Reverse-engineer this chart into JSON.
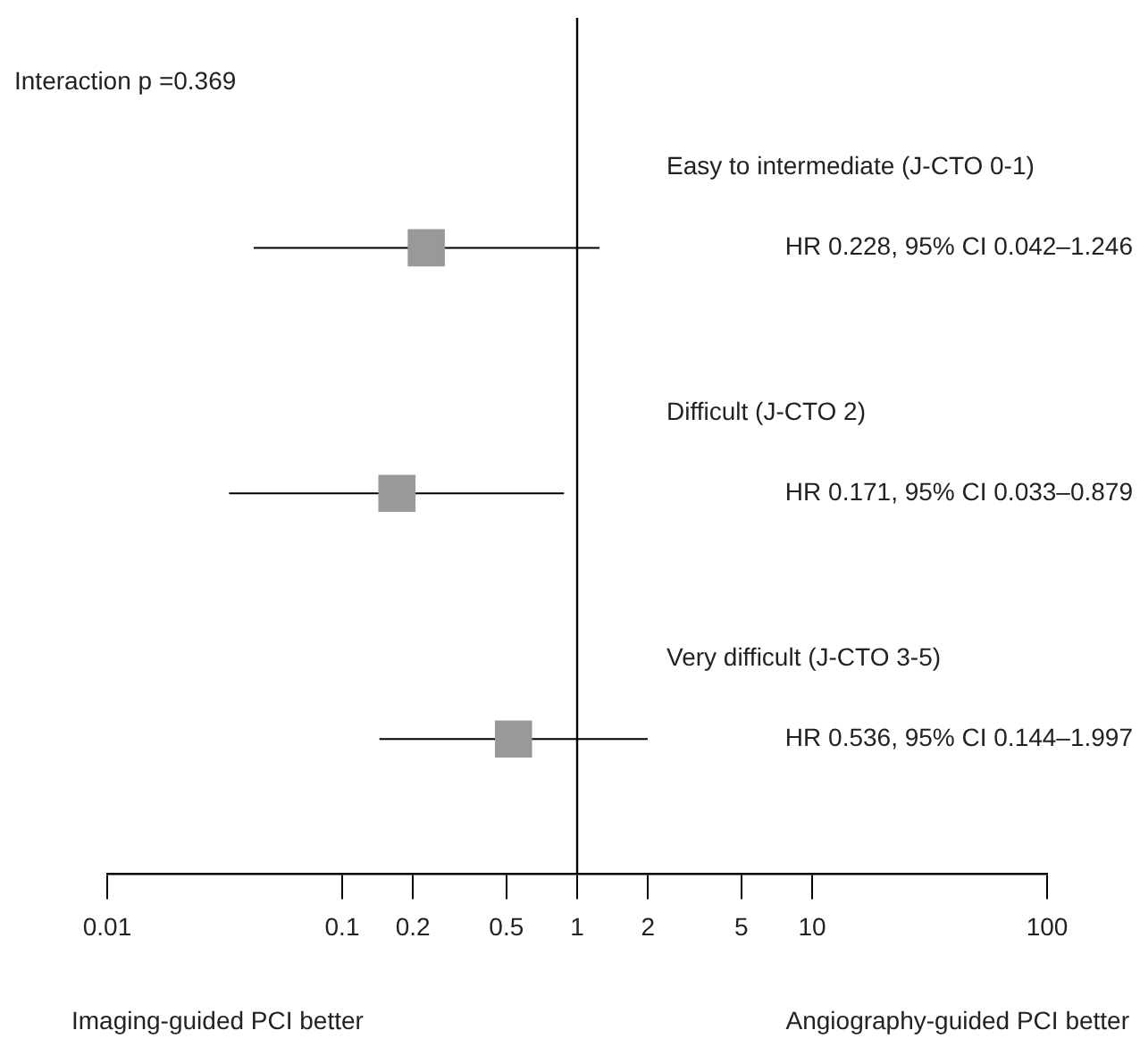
{
  "chart_data": {
    "type": "scatter",
    "orientation": "horizontal",
    "marker": "square",
    "color": "#999999",
    "categories": [
      "Easy to intermediate (J-CTO 0-1)",
      "Difficult (J-CTO 2)",
      "Very difficult (J-CTO 3-5)"
    ],
    "values": [
      0.228,
      0.171,
      0.536
    ],
    "errors": [
      [
        0.042,
        1.246
      ],
      [
        0.033,
        0.879
      ],
      [
        0.144,
        1.997
      ]
    ],
    "log": "x",
    "xlim": [
      0.01,
      100
    ],
    "xticks": [
      0.01,
      0.1,
      0.2,
      0.5,
      1,
      2,
      5,
      10,
      100
    ],
    "ref_lines": [
      {
        "axis": "x",
        "value": 1,
        "color": "#000000"
      }
    ],
    "annotations": [
      "Interaction p =0.369",
      "HR 0.228, 95% CI 0.042–1.246",
      "HR 0.171, 95% CI 0.033–0.879",
      "HR 0.536, 95% CI 0.144–1.997",
      "Imaging-guided PCI better",
      "Angiography-guided PCI better"
    ]
  }
}
